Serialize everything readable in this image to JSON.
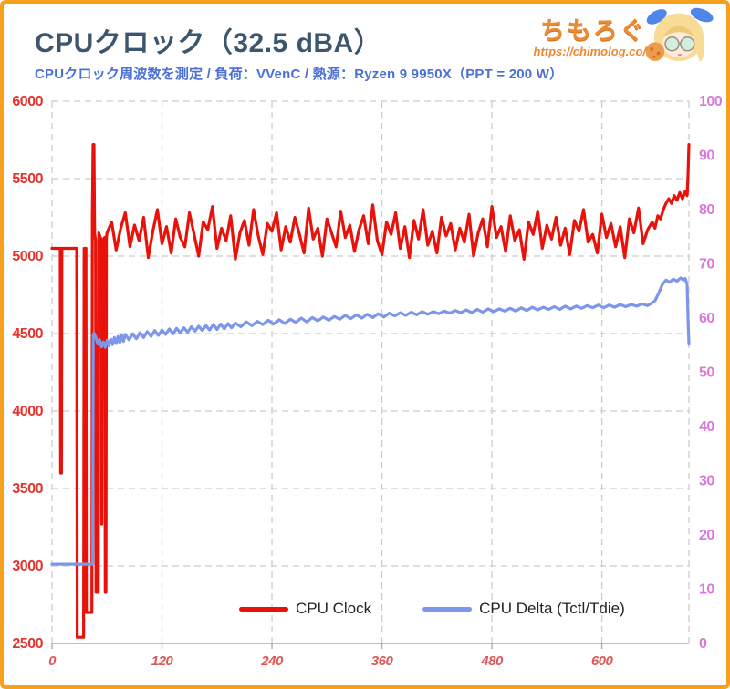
{
  "header": {
    "title": "CPUクロック（32.5 dBA）",
    "subtitle": "CPUクロック周波数を測定 / 負荷：VVenC / 熱源：Ryzen 9 9950X（PPT = 200 W）"
  },
  "logo": {
    "name": "ちもろぐ",
    "url": "https://chimolog.co/"
  },
  "colors": {
    "frame_border": "#f7a01e",
    "title": "#3c566d",
    "subtitle": "#4a70d8",
    "logo_orange": "#ed8a2f",
    "red_line": "#e8120b",
    "blue_line": "#7e96ea",
    "left_axis_labels": "#e5312b",
    "x_axis_labels": "#e05555",
    "right_axis_labels": "#d878d8",
    "gridline": "#cccccc",
    "axis_spine": "#aaaaaa",
    "legend_text": "#222222"
  },
  "chart_data": {
    "type": "line",
    "title": "CPUクロック（32.5 dBA）",
    "grid": true,
    "legend_position": "bottom-center-inside",
    "x_axis": {
      "range": [
        0,
        695
      ],
      "ticks": [
        0,
        120,
        240,
        360,
        480,
        600
      ],
      "unit": "seconds"
    },
    "left_axis": {
      "range": [
        2500,
        6000
      ],
      "ticks": [
        2500,
        3000,
        3500,
        4000,
        4500,
        5000,
        5500,
        6000
      ],
      "unit": "MHz"
    },
    "right_axis": {
      "range": [
        0,
        100
      ],
      "ticks": [
        0,
        10,
        20,
        30,
        40,
        50,
        60,
        70,
        80,
        90,
        100
      ],
      "unit": "degC"
    },
    "series": [
      {
        "name": "CPU Clock",
        "axis": "left",
        "color": "#e8120b",
        "points": [
          [
            0,
            5050
          ],
          [
            9,
            5050
          ],
          [
            9.4,
            3600
          ],
          [
            10.4,
            3600
          ],
          [
            10.8,
            5050
          ],
          [
            27,
            5050
          ],
          [
            27.5,
            2540
          ],
          [
            34.5,
            2540
          ],
          [
            35,
            5050
          ],
          [
            37,
            5050
          ],
          [
            37.5,
            2700
          ],
          [
            43.5,
            2700
          ],
          [
            44,
            5260
          ],
          [
            44.8,
            5720
          ],
          [
            45.8,
            5720
          ],
          [
            46.5,
            5150
          ],
          [
            47.5,
            5100
          ],
          [
            48,
            2830
          ],
          [
            50.5,
            2830
          ],
          [
            51,
            5150
          ],
          [
            54,
            5100
          ],
          [
            54.3,
            3270
          ],
          [
            54.8,
            5100
          ],
          [
            57.5,
            5120
          ],
          [
            58,
            2830
          ],
          [
            58.8,
            2830
          ],
          [
            59.3,
            5120
          ],
          [
            60,
            5150
          ],
          [
            65,
            5220
          ],
          [
            70,
            5040
          ],
          [
            75,
            5180
          ],
          [
            80,
            5280
          ],
          [
            85,
            5060
          ],
          [
            90,
            5200
          ],
          [
            95,
            5100
          ],
          [
            100,
            5250
          ],
          [
            105,
            4990
          ],
          [
            110,
            5160
          ],
          [
            115,
            5300
          ],
          [
            120,
            5080
          ],
          [
            125,
            5190
          ],
          [
            130,
            5020
          ],
          [
            135,
            5240
          ],
          [
            140,
            5120
          ],
          [
            145,
            5060
          ],
          [
            150,
            5280
          ],
          [
            155,
            5140
          ],
          [
            160,
            5000
          ],
          [
            165,
            5220
          ],
          [
            170,
            5170
          ],
          [
            175,
            5320
          ],
          [
            180,
            5050
          ],
          [
            185,
            5180
          ],
          [
            190,
            5100
          ],
          [
            195,
            5260
          ],
          [
            200,
            4980
          ],
          [
            205,
            5150
          ],
          [
            210,
            5230
          ],
          [
            215,
            5070
          ],
          [
            220,
            5300
          ],
          [
            225,
            5130
          ],
          [
            230,
            5010
          ],
          [
            235,
            5210
          ],
          [
            240,
            5160
          ],
          [
            245,
            5280
          ],
          [
            250,
            5040
          ],
          [
            255,
            5190
          ],
          [
            260,
            5090
          ],
          [
            265,
            5250
          ],
          [
            270,
            5140
          ],
          [
            275,
            5020
          ],
          [
            280,
            5310
          ],
          [
            285,
            5110
          ],
          [
            290,
            5180
          ],
          [
            295,
            5000
          ],
          [
            300,
            5240
          ],
          [
            305,
            5150
          ],
          [
            310,
            5060
          ],
          [
            315,
            5290
          ],
          [
            320,
            5120
          ],
          [
            325,
            5200
          ],
          [
            330,
            5030
          ],
          [
            335,
            5170
          ],
          [
            340,
            5260
          ],
          [
            345,
            5080
          ],
          [
            350,
            5330
          ],
          [
            355,
            5100
          ],
          [
            360,
            5010
          ],
          [
            365,
            5220
          ],
          [
            370,
            5140
          ],
          [
            375,
            5280
          ],
          [
            380,
            5050
          ],
          [
            385,
            5190
          ],
          [
            390,
            4990
          ],
          [
            395,
            5230
          ],
          [
            400,
            5110
          ],
          [
            405,
            5300
          ],
          [
            410,
            5070
          ],
          [
            415,
            5160
          ],
          [
            420,
            5020
          ],
          [
            425,
            5250
          ],
          [
            430,
            5130
          ],
          [
            435,
            5210
          ],
          [
            440,
            5040
          ],
          [
            445,
            5180
          ],
          [
            450,
            5090
          ],
          [
            455,
            5270
          ],
          [
            460,
            5000
          ],
          [
            465,
            5150
          ],
          [
            470,
            5240
          ],
          [
            475,
            5060
          ],
          [
            480,
            5320
          ],
          [
            485,
            5120
          ],
          [
            490,
            5190
          ],
          [
            495,
            5030
          ],
          [
            500,
            5260
          ],
          [
            505,
            5100
          ],
          [
            510,
            5170
          ],
          [
            515,
            4980
          ],
          [
            520,
            5220
          ],
          [
            525,
            5140
          ],
          [
            530,
            5290
          ],
          [
            535,
            5050
          ],
          [
            540,
            5200
          ],
          [
            545,
            5110
          ],
          [
            550,
            5250
          ],
          [
            555,
            5070
          ],
          [
            560,
            5180
          ],
          [
            565,
            5010
          ],
          [
            570,
            5230
          ],
          [
            575,
            5160
          ],
          [
            580,
            5300
          ],
          [
            585,
            5090
          ],
          [
            590,
            5140
          ],
          [
            595,
            5020
          ],
          [
            600,
            5270
          ],
          [
            605,
            5120
          ],
          [
            610,
            5210
          ],
          [
            615,
            5060
          ],
          [
            620,
            5190
          ],
          [
            625,
            4990
          ],
          [
            630,
            5240
          ],
          [
            635,
            5150
          ],
          [
            640,
            5310
          ],
          [
            645,
            5080
          ],
          [
            650,
            5170
          ],
          [
            655,
            5220
          ],
          [
            658,
            5180
          ],
          [
            661,
            5260
          ],
          [
            664,
            5240
          ],
          [
            667,
            5300
          ],
          [
            670,
            5340
          ],
          [
            673,
            5370
          ],
          [
            676,
            5340
          ],
          [
            679,
            5390
          ],
          [
            682,
            5360
          ],
          [
            685,
            5410
          ],
          [
            688,
            5370
          ],
          [
            691,
            5420
          ],
          [
            693,
            5390
          ],
          [
            694,
            5520
          ],
          [
            695,
            5720
          ]
        ]
      },
      {
        "name": "CPU Delta (Tctl/Tdie)",
        "axis": "right",
        "color": "#7e96ea",
        "points": [
          [
            0,
            14.6
          ],
          [
            44,
            14.6
          ],
          [
            44.5,
            14.6
          ],
          [
            45,
            57.0
          ],
          [
            46,
            57.2
          ],
          [
            48,
            56.4
          ],
          [
            50,
            55.2
          ],
          [
            52,
            56.0
          ],
          [
            54,
            54.7
          ],
          [
            56,
            55.6
          ],
          [
            58,
            54.6
          ],
          [
            60,
            55.9
          ],
          [
            62,
            54.9
          ],
          [
            64,
            56.1
          ],
          [
            66,
            55.1
          ],
          [
            68,
            56.4
          ],
          [
            70,
            55.3
          ],
          [
            72,
            56.6
          ],
          [
            74,
            55.5
          ],
          [
            76,
            56.8
          ],
          [
            78,
            55.7
          ],
          [
            80,
            57.0
          ],
          [
            84,
            56.0
          ],
          [
            88,
            57.1
          ],
          [
            92,
            56.2
          ],
          [
            96,
            57.3
          ],
          [
            100,
            56.4
          ],
          [
            104,
            57.5
          ],
          [
            108,
            56.6
          ],
          [
            112,
            57.7
          ],
          [
            116,
            56.8
          ],
          [
            120,
            57.8
          ],
          [
            124,
            57.0
          ],
          [
            128,
            58.0
          ],
          [
            132,
            57.1
          ],
          [
            136,
            58.1
          ],
          [
            140,
            57.3
          ],
          [
            144,
            58.2
          ],
          [
            148,
            57.4
          ],
          [
            152,
            58.4
          ],
          [
            156,
            57.6
          ],
          [
            160,
            58.5
          ],
          [
            164,
            57.7
          ],
          [
            168,
            58.6
          ],
          [
            172,
            57.8
          ],
          [
            176,
            58.8
          ],
          [
            180,
            57.9
          ],
          [
            184,
            58.9
          ],
          [
            188,
            58.0
          ],
          [
            192,
            59.0
          ],
          [
            196,
            58.2
          ],
          [
            200,
            59.1
          ],
          [
            206,
            58.4
          ],
          [
            212,
            59.3
          ],
          [
            218,
            58.6
          ],
          [
            224,
            59.4
          ],
          [
            230,
            58.8
          ],
          [
            236,
            59.6
          ],
          [
            242,
            58.9
          ],
          [
            248,
            59.7
          ],
          [
            254,
            59.0
          ],
          [
            260,
            59.8
          ],
          [
            266,
            59.2
          ],
          [
            272,
            60.0
          ],
          [
            278,
            59.3
          ],
          [
            284,
            60.1
          ],
          [
            290,
            59.5
          ],
          [
            296,
            60.2
          ],
          [
            302,
            59.6
          ],
          [
            308,
            60.3
          ],
          [
            314,
            59.8
          ],
          [
            320,
            60.5
          ],
          [
            326,
            59.9
          ],
          [
            332,
            60.6
          ],
          [
            338,
            60.0
          ],
          [
            344,
            60.7
          ],
          [
            350,
            60.1
          ],
          [
            356,
            60.8
          ],
          [
            362,
            60.2
          ],
          [
            368,
            60.9
          ],
          [
            374,
            60.4
          ],
          [
            380,
            61.0
          ],
          [
            386,
            60.5
          ],
          [
            392,
            61.1
          ],
          [
            398,
            60.6
          ],
          [
            404,
            61.2
          ],
          [
            410,
            60.7
          ],
          [
            416,
            61.2
          ],
          [
            422,
            60.8
          ],
          [
            428,
            61.3
          ],
          [
            434,
            60.9
          ],
          [
            440,
            61.4
          ],
          [
            446,
            61.0
          ],
          [
            452,
            61.5
          ],
          [
            458,
            61.0
          ],
          [
            464,
            61.6
          ],
          [
            470,
            61.1
          ],
          [
            476,
            61.7
          ],
          [
            482,
            61.2
          ],
          [
            488,
            61.7
          ],
          [
            494,
            61.3
          ],
          [
            500,
            61.8
          ],
          [
            506,
            61.3
          ],
          [
            512,
            61.9
          ],
          [
            518,
            61.4
          ],
          [
            524,
            62.0
          ],
          [
            530,
            61.5
          ],
          [
            536,
            62.0
          ],
          [
            542,
            61.6
          ],
          [
            548,
            62.1
          ],
          [
            554,
            61.6
          ],
          [
            560,
            62.2
          ],
          [
            566,
            61.7
          ],
          [
            572,
            62.2
          ],
          [
            578,
            61.8
          ],
          [
            584,
            62.3
          ],
          [
            590,
            61.9
          ],
          [
            596,
            62.4
          ],
          [
            602,
            61.9
          ],
          [
            608,
            62.4
          ],
          [
            614,
            62.0
          ],
          [
            620,
            62.5
          ],
          [
            626,
            62.1
          ],
          [
            632,
            62.5
          ],
          [
            638,
            62.2
          ],
          [
            644,
            62.6
          ],
          [
            650,
            62.3
          ],
          [
            654,
            62.7
          ],
          [
            658,
            63.2
          ],
          [
            662,
            64.6
          ],
          [
            666,
            66.2
          ],
          [
            670,
            67.0
          ],
          [
            674,
            66.6
          ],
          [
            678,
            67.2
          ],
          [
            682,
            66.8
          ],
          [
            686,
            67.4
          ],
          [
            689,
            67.0
          ],
          [
            691,
            67.3
          ],
          [
            693,
            66.2
          ],
          [
            694,
            60.0
          ],
          [
            695,
            55.2
          ]
        ]
      }
    ]
  }
}
